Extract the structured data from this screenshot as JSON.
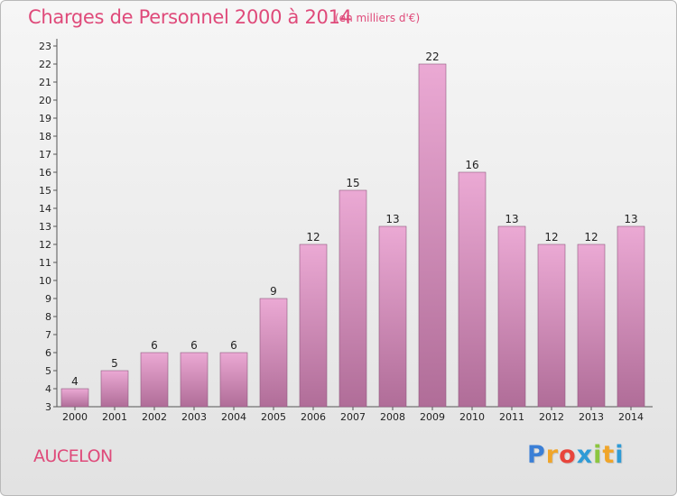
{
  "header": {
    "title": "Charges de Personnel 2000 à 2014",
    "subtitle": "(en milliers d'€)"
  },
  "footer": {
    "commune": "AUCELON",
    "brand_letters": [
      "P",
      "r",
      "o",
      "x",
      "i",
      "t",
      "i"
    ],
    "brand_colors": [
      "#3b7fd6",
      "#f0a52a",
      "#e8453c",
      "#2f9bd6",
      "#8cc63f",
      "#f0a52a",
      "#2f9bd6"
    ]
  },
  "colors": {
    "accent": "#df4a7a",
    "bar_top": "#eba9d4",
    "bar_bottom": "#b06d98",
    "bar_stroke": "#8f5a7f"
  },
  "chart_data": {
    "type": "bar",
    "categories": [
      "2000",
      "2001",
      "2002",
      "2003",
      "2004",
      "2005",
      "2006",
      "2007",
      "2008",
      "2009",
      "2010",
      "2011",
      "2012",
      "2013",
      "2014"
    ],
    "values": [
      4,
      5,
      6,
      6,
      6,
      9,
      12,
      15,
      13,
      22,
      16,
      13,
      12,
      12,
      13
    ],
    "data_labels": [
      "4",
      "5",
      "6",
      "6",
      "6",
      "9",
      "12",
      "15",
      "13",
      "22",
      "16",
      "13",
      "12",
      "12",
      "13"
    ],
    "title": "Charges de Personnel 2000 à 2014",
    "subtitle": "(en milliers d'€)",
    "ylim": [
      3,
      23
    ],
    "yticks": [
      "3",
      "4",
      "5",
      "6",
      "7",
      "8",
      "9",
      "10",
      "11",
      "12",
      "13",
      "14",
      "15",
      "16",
      "17",
      "18",
      "19",
      "20",
      "21",
      "22",
      "23"
    ],
    "grid": false,
    "legend": "none"
  }
}
